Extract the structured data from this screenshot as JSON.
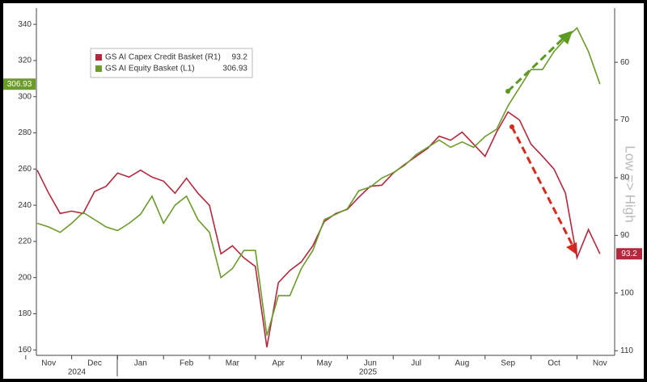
{
  "chart_data": {
    "type": "line",
    "categories": [
      null,
      "Nov",
      null,
      null,
      null,
      "Dec",
      null,
      null,
      null,
      "Jan",
      null,
      null,
      null,
      "Feb",
      null,
      null,
      null,
      "Mar",
      null,
      null,
      null,
      "Apr",
      null,
      null,
      null,
      "May",
      null,
      null,
      null,
      "Jun",
      null,
      null,
      null,
      "Jul",
      null,
      null,
      null,
      "Aug",
      null,
      null,
      null,
      "Sep",
      null,
      null,
      null,
      "Oct",
      null,
      null,
      null,
      "Nov"
    ],
    "x_year_labels": [
      "2024",
      "2025"
    ],
    "series": [
      {
        "name": "GS AI Capex Credit Basket (R1)",
        "color": "#b3283c",
        "axis": "y2",
        "values": [
          78.7,
          82.7,
          86.2,
          85.8,
          86.2,
          82.4,
          81.5,
          79.2,
          79.9,
          78.7,
          79.9,
          80.6,
          82.7,
          80.1,
          82.7,
          84.8,
          93.2,
          91.8,
          93.9,
          95.4,
          109.4,
          98.2,
          96.1,
          94.6,
          91.8,
          87.6,
          86.2,
          85.5,
          83.4,
          81.5,
          81.3,
          79.2,
          77.7,
          76.3,
          74.9,
          72.8,
          73.5,
          72.1,
          74.2,
          76.3,
          72.1,
          68.6,
          70.0,
          74.2,
          76.3,
          78.5,
          82.7,
          93.9,
          89.0,
          93.2
        ]
      },
      {
        "name": "GS AI Equity Basket (L1)",
        "color": "#6b9b2b",
        "values": [
          230,
          228,
          225,
          230,
          236,
          232,
          228,
          226,
          230,
          235,
          245,
          230,
          240,
          245,
          232,
          225,
          200,
          205,
          215,
          215,
          168,
          190,
          190,
          205,
          215,
          232,
          235,
          238,
          248,
          250,
          255,
          258,
          262,
          268,
          272,
          276,
          272,
          275,
          272,
          278,
          282,
          295,
          305,
          315,
          315,
          325,
          332,
          338,
          325,
          306.93
        ]
      }
    ],
    "ylim": [
      157,
      349
    ],
    "yticks": [
      160,
      180,
      200,
      220,
      240,
      260,
      280,
      300,
      320,
      340
    ],
    "y2lim": [
      110.8,
      50.6
    ],
    "y2ticks": [
      60,
      70,
      80,
      90,
      100,
      110
    ],
    "y2_label": "Low => High",
    "legend": "upper left",
    "grid": false
  }
}
